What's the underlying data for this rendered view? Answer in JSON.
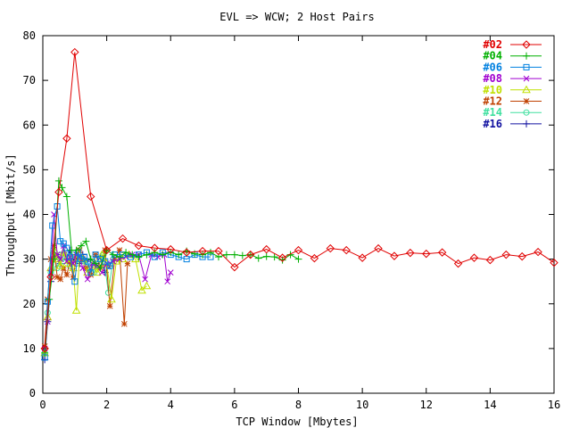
{
  "chart_data": {
    "type": "line",
    "title": "EVL => WCW; 2 Host Pairs",
    "xlabel": "TCP Window [Mbytes]",
    "ylabel": "Throughput [Mbit/s]",
    "xlim": [
      0,
      16
    ],
    "ylim": [
      0,
      80
    ],
    "xticks": [
      "0",
      "2",
      "4",
      "6",
      "8",
      "10",
      "12",
      "14",
      "16"
    ],
    "yticks": [
      "0",
      "10",
      "20",
      "30",
      "40",
      "50",
      "60",
      "70",
      "80"
    ],
    "grid": false,
    "legend_position": "top-right",
    "series": [
      {
        "name": "#02",
        "color": "#e00000",
        "marker": "diamond",
        "points": [
          [
            0.06,
            10
          ],
          [
            0.25,
            26
          ],
          [
            0.5,
            45
          ],
          [
            0.75,
            57
          ],
          [
            1.0,
            76.3
          ],
          [
            1.5,
            44
          ],
          [
            2.0,
            32
          ],
          [
            2.5,
            34.6
          ],
          [
            3.0,
            33
          ],
          [
            3.5,
            32.5
          ],
          [
            4.0,
            32.2
          ],
          [
            4.5,
            31.5
          ],
          [
            5.0,
            31.8
          ],
          [
            5.5,
            31.8
          ],
          [
            6.0,
            28.2
          ],
          [
            6.5,
            31
          ],
          [
            7.0,
            32.2
          ],
          [
            7.5,
            30.3
          ],
          [
            8.0,
            32
          ],
          [
            8.5,
            30.2
          ],
          [
            9.0,
            32.4
          ],
          [
            9.5,
            32
          ],
          [
            10.0,
            30.3
          ],
          [
            10.5,
            32.4
          ],
          [
            11.0,
            30.7
          ],
          [
            11.5,
            31.4
          ],
          [
            12.0,
            31.2
          ],
          [
            12.5,
            31.5
          ],
          [
            13.0,
            29
          ],
          [
            13.5,
            30.3
          ],
          [
            14.0,
            29.8
          ],
          [
            14.5,
            31
          ],
          [
            15.0,
            30.6
          ],
          [
            15.5,
            31.6
          ],
          [
            16.0,
            29.2
          ]
        ]
      },
      {
        "name": "#04",
        "color": "#00b000",
        "marker": "plus",
        "points": [
          [
            0.06,
            9
          ],
          [
            0.2,
            21
          ],
          [
            0.35,
            30
          ],
          [
            0.5,
            47.5
          ],
          [
            0.6,
            46
          ],
          [
            0.75,
            44
          ],
          [
            0.9,
            32
          ],
          [
            1.05,
            32
          ],
          [
            1.2,
            33
          ],
          [
            1.35,
            34
          ],
          [
            1.5,
            30
          ],
          [
            1.65,
            29
          ],
          [
            1.8,
            28
          ],
          [
            2.0,
            32
          ],
          [
            2.2,
            31
          ],
          [
            2.4,
            30.5
          ],
          [
            2.6,
            31.5
          ],
          [
            2.8,
            31
          ],
          [
            3.0,
            30.5
          ],
          [
            3.25,
            31
          ],
          [
            3.5,
            31.5
          ],
          [
            3.75,
            31
          ],
          [
            4.0,
            31.5
          ],
          [
            4.25,
            31
          ],
          [
            4.5,
            31.8
          ],
          [
            4.75,
            31.2
          ],
          [
            5.0,
            31
          ],
          [
            5.25,
            31.5
          ],
          [
            5.5,
            30.5
          ],
          [
            5.75,
            31
          ],
          [
            6.0,
            31
          ],
          [
            6.25,
            30.8
          ],
          [
            6.5,
            31
          ],
          [
            6.75,
            30.2
          ],
          [
            7.0,
            30.6
          ],
          [
            7.25,
            30.5
          ],
          [
            7.5,
            29.8
          ],
          [
            7.75,
            31
          ],
          [
            8.0,
            30
          ]
        ]
      },
      {
        "name": "#06",
        "color": "#0080e0",
        "marker": "square",
        "points": [
          [
            0.06,
            8
          ],
          [
            0.15,
            20.5
          ],
          [
            0.3,
            37.5
          ],
          [
            0.45,
            41.8
          ],
          [
            0.55,
            34
          ],
          [
            0.65,
            33.5
          ],
          [
            0.75,
            32.5
          ],
          [
            0.85,
            30.5
          ],
          [
            1.0,
            25
          ],
          [
            1.1,
            31.5
          ],
          [
            1.2,
            30
          ],
          [
            1.3,
            30.5
          ],
          [
            1.4,
            29.5
          ],
          [
            1.5,
            27
          ],
          [
            1.65,
            31
          ],
          [
            1.8,
            30
          ],
          [
            1.95,
            29.5
          ],
          [
            2.1,
            28.5
          ],
          [
            2.25,
            31
          ],
          [
            2.5,
            31
          ],
          [
            2.75,
            30.5
          ],
          [
            3.0,
            31
          ],
          [
            3.25,
            31.5
          ],
          [
            3.5,
            30.5
          ],
          [
            3.75,
            31.5
          ],
          [
            4.0,
            31
          ],
          [
            4.25,
            30.5
          ],
          [
            4.5,
            30
          ],
          [
            4.75,
            31
          ],
          [
            5.0,
            30.5
          ],
          [
            5.25,
            30.5
          ]
        ]
      },
      {
        "name": "#08",
        "color": "#a000d0",
        "marker": "cross",
        "points": [
          [
            0.06,
            10
          ],
          [
            0.15,
            16
          ],
          [
            0.25,
            27
          ],
          [
            0.35,
            40
          ],
          [
            0.45,
            31
          ],
          [
            0.55,
            30
          ],
          [
            0.65,
            33
          ],
          [
            0.75,
            29.5
          ],
          [
            0.85,
            30.5
          ],
          [
            0.95,
            29
          ],
          [
            1.05,
            31
          ],
          [
            1.15,
            30.5
          ],
          [
            1.25,
            28
          ],
          [
            1.4,
            25.5
          ],
          [
            1.55,
            29
          ],
          [
            1.7,
            28.5
          ],
          [
            1.85,
            27
          ],
          [
            2.0,
            29
          ],
          [
            2.2,
            29.5
          ],
          [
            2.4,
            30
          ],
          [
            2.6,
            30.5
          ],
          [
            2.8,
            31
          ],
          [
            3.0,
            31
          ],
          [
            3.2,
            25.5
          ],
          [
            3.4,
            31
          ],
          [
            3.6,
            30.5
          ],
          [
            3.8,
            31
          ],
          [
            3.9,
            25
          ],
          [
            4.0,
            27
          ]
        ]
      },
      {
        "name": "#10",
        "color": "#c0e000",
        "marker": "triangle",
        "points": [
          [
            0.06,
            9
          ],
          [
            0.15,
            17
          ],
          [
            0.25,
            28
          ],
          [
            0.35,
            32
          ],
          [
            0.45,
            30
          ],
          [
            0.55,
            28.5
          ],
          [
            0.65,
            31.5
          ],
          [
            0.75,
            29
          ],
          [
            0.85,
            30
          ],
          [
            0.95,
            28
          ],
          [
            1.05,
            18.5
          ],
          [
            1.15,
            31
          ],
          [
            1.25,
            30
          ],
          [
            1.4,
            27
          ],
          [
            1.55,
            28.5
          ],
          [
            1.7,
            27
          ],
          [
            1.85,
            31
          ],
          [
            2.0,
            29
          ],
          [
            2.15,
            21
          ],
          [
            2.3,
            29.5
          ],
          [
            2.5,
            30
          ],
          [
            2.7,
            31
          ],
          [
            2.9,
            30
          ],
          [
            3.1,
            23
          ],
          [
            3.25,
            24
          ]
        ]
      },
      {
        "name": "#12",
        "color": "#c04000",
        "marker": "star",
        "points": [
          [
            0.06,
            10.5
          ],
          [
            0.15,
            21
          ],
          [
            0.25,
            30
          ],
          [
            0.35,
            33
          ],
          [
            0.45,
            26
          ],
          [
            0.55,
            25.5
          ],
          [
            0.65,
            28
          ],
          [
            0.75,
            26.5
          ],
          [
            0.85,
            29.5
          ],
          [
            0.95,
            26
          ],
          [
            1.05,
            30.5
          ],
          [
            1.15,
            32
          ],
          [
            1.25,
            30
          ],
          [
            1.35,
            28
          ],
          [
            1.5,
            26.5
          ],
          [
            1.65,
            31
          ],
          [
            1.8,
            28
          ],
          [
            1.95,
            32
          ],
          [
            2.1,
            19.5
          ],
          [
            2.25,
            30
          ],
          [
            2.4,
            32
          ],
          [
            2.55,
            15.5
          ],
          [
            2.65,
            29
          ]
        ]
      },
      {
        "name": "#14",
        "color": "#40e0a0",
        "marker": "circle",
        "points": [
          [
            0.06,
            9
          ],
          [
            0.15,
            18
          ],
          [
            0.25,
            27
          ],
          [
            0.35,
            31
          ],
          [
            0.45,
            28
          ],
          [
            0.55,
            31
          ],
          [
            0.65,
            29.5
          ],
          [
            0.75,
            30.5
          ],
          [
            0.85,
            28.5
          ],
          [
            0.95,
            31
          ],
          [
            1.05,
            29
          ],
          [
            1.15,
            30
          ],
          [
            1.3,
            29.5
          ],
          [
            1.45,
            28
          ],
          [
            1.6,
            27
          ],
          [
            1.75,
            29
          ],
          [
            1.9,
            31
          ],
          [
            2.05,
            22.5
          ],
          [
            2.2,
            30
          ]
        ]
      },
      {
        "name": "#16",
        "color": "#1010a0",
        "marker": "plus",
        "points": [
          [
            0.06,
            7.5
          ],
          [
            0.15,
            16
          ],
          [
            0.25,
            25
          ],
          [
            0.35,
            30
          ],
          [
            0.45,
            31
          ],
          [
            0.55,
            29
          ],
          [
            0.65,
            31.5
          ],
          [
            0.75,
            30
          ],
          [
            0.85,
            32
          ],
          [
            0.95,
            29.5
          ],
          [
            1.05,
            31
          ],
          [
            1.15,
            29
          ],
          [
            1.25,
            31
          ],
          [
            1.35,
            29.5
          ],
          [
            1.5,
            30
          ],
          [
            1.65,
            29
          ],
          [
            1.8,
            30.5
          ],
          [
            1.95,
            27
          ],
          [
            2.1,
            28.5
          ]
        ]
      }
    ]
  }
}
